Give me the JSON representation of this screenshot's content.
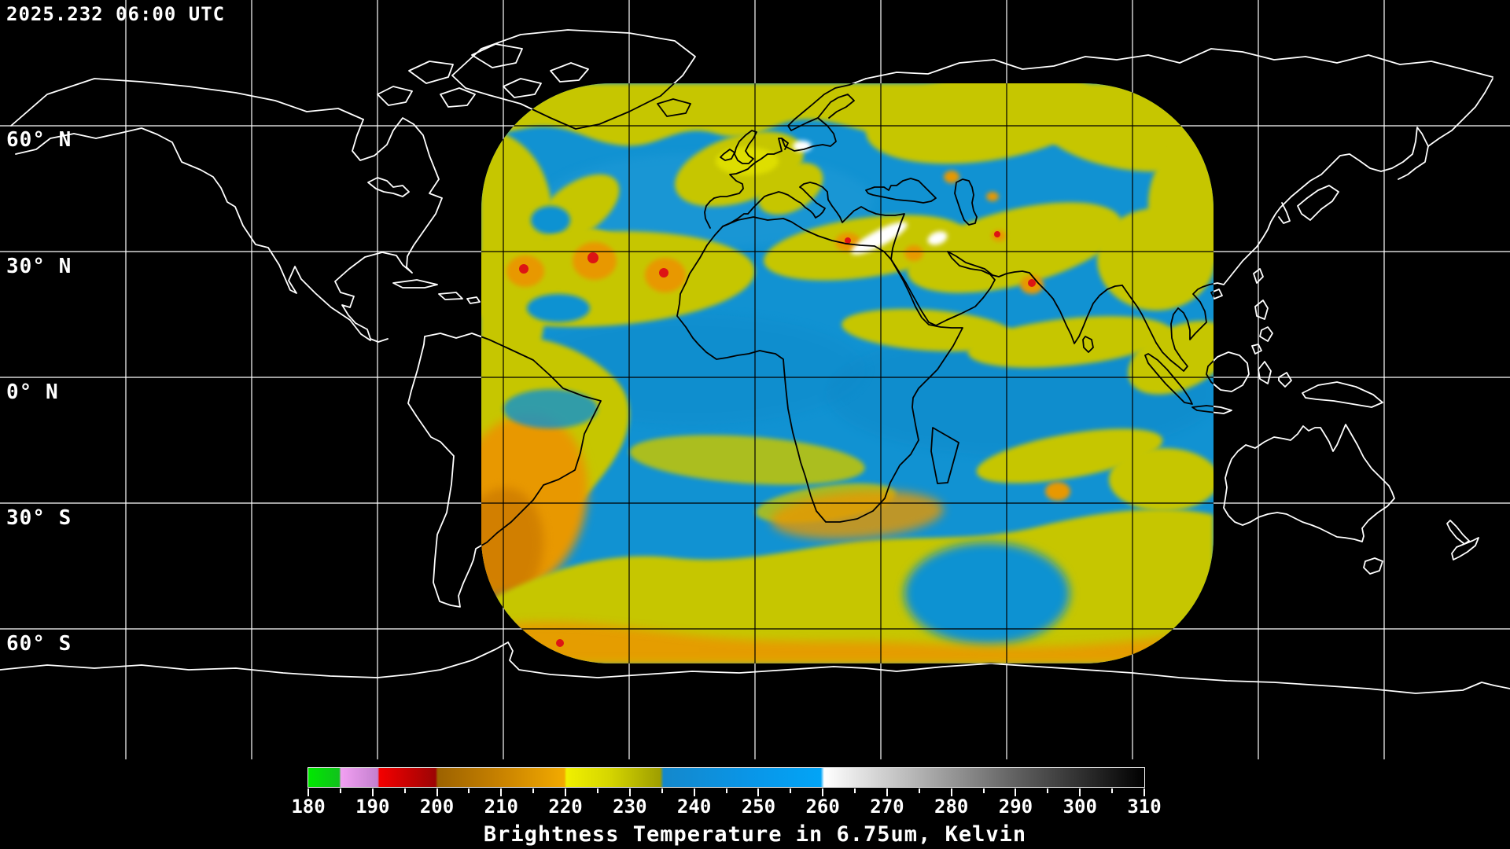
{
  "header": {
    "timestamp": "2025.232 06:00 UTC"
  },
  "map": {
    "latitude_labels": [
      "60° N",
      "30° N",
      "0° N",
      "30° S",
      "60° S"
    ],
    "projection": "equirectangular world map, black ocean, white coastlines outside satellite swath, black coastlines inside swath",
    "colors": {
      "background": "#000000",
      "grid_outside_swath": "#ffffff",
      "grid_inside_swath": "#000000",
      "coastline_outside_swath": "#ffffff",
      "coastline_inside_swath": "#000000",
      "swath_dry_blue": "#1192d2",
      "cloud_yellow": "#c6c600",
      "cloud_bright_yellow": "#dede00",
      "cloud_orange": "#e89800",
      "cloud_deep_orange": "#cc7a00",
      "cold_overshoot_red": "#dd1414",
      "warm_surface_white": "#ffffff"
    }
  },
  "colorbar": {
    "caption": "Brightness Temperature in 6.75um, Kelvin",
    "units": "Kelvin",
    "channel": "6.75um water vapor",
    "min": 180,
    "max": 310,
    "tick_values": [
      180,
      190,
      200,
      210,
      220,
      230,
      240,
      250,
      260,
      270,
      280,
      290,
      300,
      310
    ],
    "minor_tick_values": [
      185,
      195,
      205,
      215,
      225,
      235,
      245,
      255,
      265,
      275,
      285,
      295,
      305
    ],
    "gradient_stops": [
      [
        0,
        "#00e800"
      ],
      [
        3.7,
        "#11c21c"
      ],
      [
        3.9,
        "#f2a0f2"
      ],
      [
        8.3,
        "#c480cf"
      ],
      [
        8.5,
        "#f40000"
      ],
      [
        15.2,
        "#9c0404"
      ],
      [
        15.5,
        "#9c6200"
      ],
      [
        23,
        "#c88200"
      ],
      [
        30.6,
        "#f2aa00"
      ],
      [
        30.9,
        "#f0f000"
      ],
      [
        36,
        "#d6d600"
      ],
      [
        42.1,
        "#9e9e00"
      ],
      [
        42.5,
        "#1488cc"
      ],
      [
        53,
        "#0996e8"
      ],
      [
        61.3,
        "#02a4f6"
      ],
      [
        61.7,
        "#ffffff"
      ],
      [
        72,
        "#b9b9b9"
      ],
      [
        85,
        "#5e5e5e"
      ],
      [
        100,
        "#000000"
      ]
    ],
    "segments": [
      {
        "range": "180-185",
        "color": "green"
      },
      {
        "range": "185-190",
        "color": "violet"
      },
      {
        "range": "190-200",
        "color": "red"
      },
      {
        "range": "200-220",
        "color": "orange"
      },
      {
        "range": "220-236",
        "color": "yellow-olive"
      },
      {
        "range": "236-260",
        "color": "blue"
      },
      {
        "range": "260-310",
        "color": "white to black grayscale"
      }
    ]
  },
  "chart_data": {
    "type": "heatmap",
    "title": "Water vapor brightness temperature satellite composite",
    "time": "2025.232 06:00 UTC",
    "value_range_kelvin": [
      180,
      310
    ],
    "swath_coverage": "Atlantic, South America east coast, Europe, Africa, Middle East, India to Southeast Asia, roughly 67W-107E and 70N-68S",
    "legend_position": "bottom",
    "notable_features": [
      "dry blue band over Mediterranean, North Africa and south Atlantic (240-255K)",
      "convective storm cells with orange/red tops over West Africa Sahel (190-205K)",
      "warm white surface patches near Turkey/Cyprus (260-270K)",
      "orange cyclonic cloud mass off Argentina in the southwest of the swath",
      "yellow-orange storm band along the southern swath edge"
    ]
  }
}
